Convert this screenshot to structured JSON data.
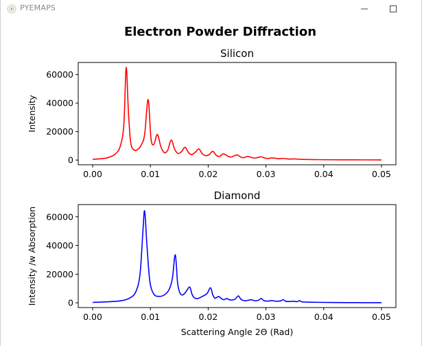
{
  "window": {
    "title": "PYEMAPS",
    "icon": "pyemaps-app-icon",
    "controls": [
      "minimize-icon",
      "maximize-icon"
    ]
  },
  "figure": {
    "title": "Electron Powder Diffraction"
  },
  "chart_data": [
    {
      "type": "line",
      "title": "Silicon",
      "xlabel": "",
      "ylabel": "Intensity",
      "xlim": [
        -0.0025,
        0.0525
      ],
      "ylim": [
        -3300,
        68500
      ],
      "xticks": [
        "0.00",
        "0.01",
        "0.02",
        "0.03",
        "0.04",
        "0.05"
      ],
      "xtick_values": [
        0,
        0.01,
        0.02,
        0.03,
        0.04,
        0.05
      ],
      "yticks": [
        "0",
        "20000",
        "40000",
        "60000"
      ],
      "ytick_values": [
        0,
        20000,
        40000,
        60000
      ],
      "grid": false,
      "series": [
        {
          "color": "#ff0000",
          "x": [
            0.0,
            0.002,
            0.003,
            0.004,
            0.0048,
            0.0054,
            0.0058,
            0.0062,
            0.0066,
            0.0072,
            0.0078,
            0.0084,
            0.009,
            0.0096,
            0.0101,
            0.0106,
            0.0112,
            0.0118,
            0.0124,
            0.013,
            0.0136,
            0.0142,
            0.0148,
            0.0154,
            0.016,
            0.0166,
            0.0172,
            0.0178,
            0.0184,
            0.019,
            0.0196,
            0.0202,
            0.0208,
            0.0214,
            0.022,
            0.0226,
            0.0232,
            0.0238,
            0.0244,
            0.025,
            0.0256,
            0.0262,
            0.0268,
            0.0274,
            0.028,
            0.0286,
            0.0292,
            0.0298,
            0.0304,
            0.031,
            0.0316,
            0.0322,
            0.033,
            0.034,
            0.035,
            0.036,
            0.038,
            0.04,
            0.045,
            0.05
          ],
          "y": [
            500,
            1200,
            2200,
            4500,
            10000,
            25000,
            65000,
            33000,
            12000,
            7000,
            7500,
            10500,
            18000,
            42500,
            15000,
            11000,
            18000,
            9500,
            5200,
            7000,
            14000,
            7500,
            4600,
            6000,
            9000,
            5200,
            3800,
            5600,
            7800,
            4300,
            3100,
            3900,
            6200,
            3300,
            2600,
            4400,
            3200,
            2100,
            2800,
            3600,
            2200,
            1700,
            2500,
            1900,
            1400,
            1800,
            2300,
            1400,
            1100,
            1500,
            1300,
            900,
            1100,
            700,
            800,
            500,
            350,
            250,
            150,
            100
          ]
        }
      ]
    },
    {
      "type": "line",
      "title": "Diamond",
      "xlabel": "Scattering Angle 2Θ (Rad)",
      "ylabel": "Intensity /w Absorption",
      "xlim": [
        -0.0025,
        0.0525
      ],
      "ylim": [
        -3300,
        68500
      ],
      "xticks": [
        "0.00",
        "0.01",
        "0.02",
        "0.03",
        "0.04",
        "0.05"
      ],
      "xtick_values": [
        0,
        0.01,
        0.02,
        0.03,
        0.04,
        0.05
      ],
      "yticks": [
        "0",
        "20000",
        "40000",
        "60000"
      ],
      "ytick_values": [
        0,
        20000,
        40000,
        60000
      ],
      "grid": false,
      "series": [
        {
          "color": "#0000ff",
          "x": [
            0.0,
            0.003,
            0.005,
            0.0065,
            0.0075,
            0.0082,
            0.0087,
            0.009,
            0.0094,
            0.0099,
            0.0106,
            0.0115,
            0.0124,
            0.0132,
            0.0138,
            0.0143,
            0.0147,
            0.0151,
            0.0156,
            0.0162,
            0.0168,
            0.0172,
            0.0176,
            0.0182,
            0.019,
            0.0198,
            0.0204,
            0.0208,
            0.0212,
            0.0218,
            0.0224,
            0.0228,
            0.0232,
            0.0238,
            0.0246,
            0.0252,
            0.0256,
            0.026,
            0.0266,
            0.0274,
            0.0282,
            0.0288,
            0.0292,
            0.0296,
            0.0302,
            0.031,
            0.0318,
            0.0326,
            0.033,
            0.0334,
            0.034,
            0.0348,
            0.0354,
            0.0358,
            0.0362,
            0.037,
            0.039,
            0.042,
            0.046,
            0.05
          ],
          "y": [
            300,
            800,
            1500,
            3500,
            8000,
            20000,
            50000,
            64000,
            40000,
            15000,
            6000,
            4500,
            5500,
            9000,
            17000,
            33500,
            14000,
            7000,
            5500,
            8000,
            11000,
            6000,
            3500,
            3000,
            4500,
            6500,
            10500,
            5500,
            3200,
            4400,
            2600,
            2200,
            3000,
            2000,
            2400,
            4800,
            2800,
            1700,
            1500,
            2100,
            1400,
            2000,
            3100,
            1600,
            1200,
            1500,
            1100,
            1400,
            2200,
            1100,
            900,
            1100,
            800,
            1500,
            700,
            500,
            350,
            200,
            120,
            80
          ]
        }
      ]
    }
  ]
}
